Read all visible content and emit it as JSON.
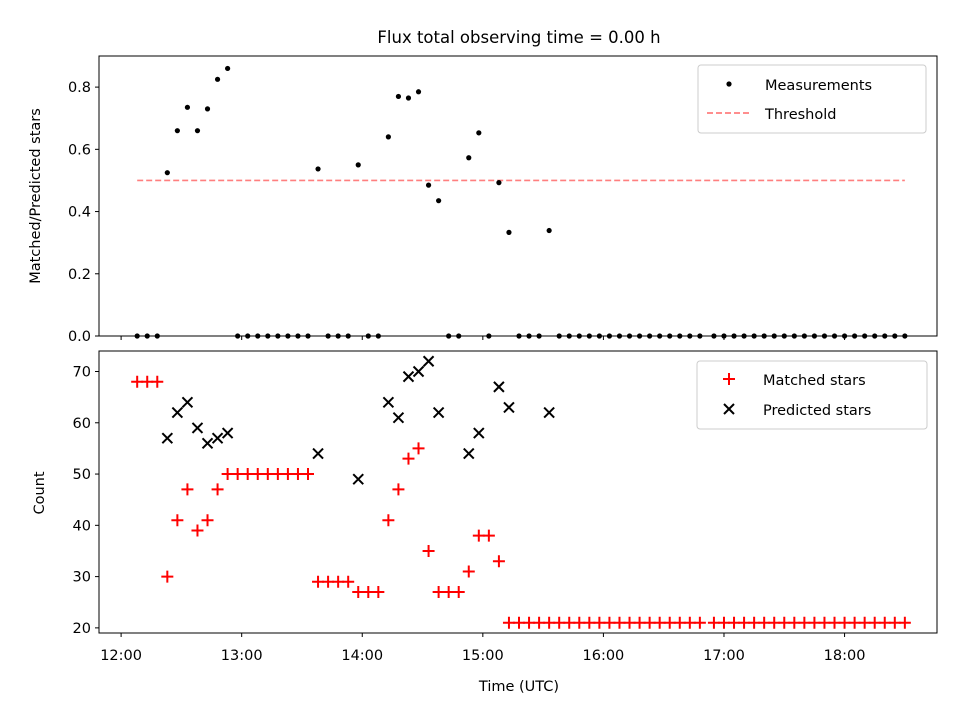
{
  "chart_data": [
    {
      "type": "scatter",
      "title": "Flux total observing time = 0.00 h",
      "ylabel": "Matched/Predicted stars",
      "xlabel": "",
      "ylim": [
        0,
        0.9
      ],
      "y_ticks": [
        "0.0",
        "0.2",
        "0.4",
        "0.6",
        "0.8"
      ],
      "legend_position": "top-right",
      "series": [
        {
          "name": "Measurements",
          "marker": "dot",
          "color": "#000000",
          "points": [
            [
              "12:08",
              0.0
            ],
            [
              "12:13",
              0.0
            ],
            [
              "12:18",
              0.0
            ],
            [
              "12:23",
              0.525
            ],
            [
              "12:28",
              0.66
            ],
            [
              "12:33",
              0.735
            ],
            [
              "12:38",
              0.66
            ],
            [
              "12:43",
              0.73
            ],
            [
              "12:48",
              0.825
            ],
            [
              "12:53",
              0.86
            ],
            [
              "12:58",
              0.0
            ],
            [
              "13:03",
              0.0
            ],
            [
              "13:08",
              0.0
            ],
            [
              "13:13",
              0.0
            ],
            [
              "13:18",
              0.0
            ],
            [
              "13:23",
              0.0
            ],
            [
              "13:28",
              0.0
            ],
            [
              "13:33",
              0.0
            ],
            [
              "13:38",
              0.537
            ],
            [
              "13:43",
              0.0
            ],
            [
              "13:48",
              0.0
            ],
            [
              "13:53",
              0.0
            ],
            [
              "13:58",
              0.55
            ],
            [
              "14:03",
              0.0
            ],
            [
              "14:08",
              0.0
            ],
            [
              "14:13",
              0.64
            ],
            [
              "14:18",
              0.77
            ],
            [
              "14:23",
              0.765
            ],
            [
              "14:28",
              0.785
            ],
            [
              "14:33",
              0.485
            ],
            [
              "14:38",
              0.435
            ],
            [
              "14:43",
              0.0
            ],
            [
              "14:48",
              0.0
            ],
            [
              "14:53",
              0.573
            ],
            [
              "14:58",
              0.653
            ],
            [
              "15:03",
              0.0
            ],
            [
              "15:08",
              0.493
            ],
            [
              "15:13",
              0.333
            ],
            [
              "15:18",
              0.0
            ],
            [
              "15:23",
              0.0
            ],
            [
              "15:28",
              0.0
            ],
            [
              "15:33",
              0.339
            ],
            [
              "15:38",
              0.0
            ],
            [
              "15:43",
              0.0
            ],
            [
              "15:48",
              0.0
            ],
            [
              "15:53",
              0.0
            ],
            [
              "15:58",
              0.0
            ],
            [
              "16:03",
              0.0
            ],
            [
              "16:08",
              0.0
            ],
            [
              "16:13",
              0.0
            ],
            [
              "16:18",
              0.0
            ],
            [
              "16:23",
              0.0
            ],
            [
              "16:28",
              0.0
            ],
            [
              "16:33",
              0.0
            ],
            [
              "16:38",
              0.0
            ],
            [
              "16:43",
              0.0
            ],
            [
              "16:48",
              0.0
            ],
            [
              "16:55",
              0.0
            ],
            [
              "17:00",
              0.0
            ],
            [
              "17:05",
              0.0
            ],
            [
              "17:10",
              0.0
            ],
            [
              "17:15",
              0.0
            ],
            [
              "17:20",
              0.0
            ],
            [
              "17:25",
              0.0
            ],
            [
              "17:30",
              0.0
            ],
            [
              "17:35",
              0.0
            ],
            [
              "17:40",
              0.0
            ],
            [
              "17:45",
              0.0
            ],
            [
              "17:50",
              0.0
            ],
            [
              "17:55",
              0.0
            ],
            [
              "18:00",
              0.0
            ],
            [
              "18:05",
              0.0
            ],
            [
              "18:10",
              0.0
            ],
            [
              "18:15",
              0.0
            ],
            [
              "18:20",
              0.0
            ],
            [
              "18:25",
              0.0
            ],
            [
              "18:30",
              0.0
            ]
          ]
        },
        {
          "name": "Threshold",
          "marker": "dashed-line",
          "color": "#ff7f7f",
          "points": [
            [
              "12:08",
              0.5
            ],
            [
              "18:30",
              0.5
            ]
          ]
        }
      ]
    },
    {
      "type": "scatter",
      "title": "",
      "xlabel": "Time (UTC)",
      "ylabel": "Count",
      "ylim": [
        19,
        74
      ],
      "y_ticks": [
        "20",
        "30",
        "40",
        "50",
        "60",
        "70"
      ],
      "x_ticks": [
        "12:00",
        "13:00",
        "14:00",
        "15:00",
        "16:00",
        "17:00",
        "18:00"
      ],
      "xlim": [
        "11:49",
        "18:46"
      ],
      "legend_position": "top-right",
      "series": [
        {
          "name": "Matched stars",
          "marker": "plus",
          "color": "#ff0000",
          "points": [
            [
              "12:08",
              68
            ],
            [
              "12:13",
              68
            ],
            [
              "12:18",
              68
            ],
            [
              "12:23",
              30
            ],
            [
              "12:28",
              41
            ],
            [
              "12:33",
              47
            ],
            [
              "12:38",
              39
            ],
            [
              "12:43",
              41
            ],
            [
              "12:48",
              47
            ],
            [
              "12:53",
              50
            ],
            [
              "12:58",
              50
            ],
            [
              "13:03",
              50
            ],
            [
              "13:08",
              50
            ],
            [
              "13:13",
              50
            ],
            [
              "13:18",
              50
            ],
            [
              "13:23",
              50
            ],
            [
              "13:28",
              50
            ],
            [
              "13:33",
              50
            ],
            [
              "13:38",
              29
            ],
            [
              "13:43",
              29
            ],
            [
              "13:48",
              29
            ],
            [
              "13:53",
              29
            ],
            [
              "13:58",
              27
            ],
            [
              "14:03",
              27
            ],
            [
              "14:08",
              27
            ],
            [
              "14:13",
              41
            ],
            [
              "14:18",
              47
            ],
            [
              "14:23",
              53
            ],
            [
              "14:28",
              55
            ],
            [
              "14:33",
              35
            ],
            [
              "14:38",
              27
            ],
            [
              "14:43",
              27
            ],
            [
              "14:48",
              27
            ],
            [
              "14:53",
              31
            ],
            [
              "14:58",
              38
            ],
            [
              "15:03",
              38
            ],
            [
              "15:08",
              33
            ],
            [
              "15:13",
              21
            ],
            [
              "15:18",
              21
            ],
            [
              "15:23",
              21
            ],
            [
              "15:28",
              21
            ],
            [
              "15:33",
              21
            ],
            [
              "15:38",
              21
            ],
            [
              "15:43",
              21
            ],
            [
              "15:48",
              21
            ],
            [
              "15:53",
              21
            ],
            [
              "15:58",
              21
            ],
            [
              "16:03",
              21
            ],
            [
              "16:08",
              21
            ],
            [
              "16:13",
              21
            ],
            [
              "16:18",
              21
            ],
            [
              "16:23",
              21
            ],
            [
              "16:28",
              21
            ],
            [
              "16:33",
              21
            ],
            [
              "16:38",
              21
            ],
            [
              "16:43",
              21
            ],
            [
              "16:48",
              21
            ],
            [
              "16:55",
              21
            ],
            [
              "17:00",
              21
            ],
            [
              "17:05",
              21
            ],
            [
              "17:10",
              21
            ],
            [
              "17:15",
              21
            ],
            [
              "17:20",
              21
            ],
            [
              "17:25",
              21
            ],
            [
              "17:30",
              21
            ],
            [
              "17:35",
              21
            ],
            [
              "17:40",
              21
            ],
            [
              "17:45",
              21
            ],
            [
              "17:50",
              21
            ],
            [
              "17:55",
              21
            ],
            [
              "18:00",
              21
            ],
            [
              "18:05",
              21
            ],
            [
              "18:10",
              21
            ],
            [
              "18:15",
              21
            ],
            [
              "18:20",
              21
            ],
            [
              "18:25",
              21
            ],
            [
              "18:30",
              21
            ]
          ]
        },
        {
          "name": "Predicted stars",
          "marker": "x",
          "color": "#000000",
          "points": [
            [
              "12:23",
              57
            ],
            [
              "12:28",
              62
            ],
            [
              "12:33",
              64
            ],
            [
              "12:38",
              59
            ],
            [
              "12:43",
              56
            ],
            [
              "12:48",
              57
            ],
            [
              "12:53",
              58
            ],
            [
              "13:38",
              54
            ],
            [
              "13:58",
              49
            ],
            [
              "14:13",
              64
            ],
            [
              "14:18",
              61
            ],
            [
              "14:23",
              69
            ],
            [
              "14:28",
              70
            ],
            [
              "14:33",
              72
            ],
            [
              "14:38",
              62
            ],
            [
              "14:53",
              54
            ],
            [
              "14:58",
              58
            ],
            [
              "15:08",
              67
            ],
            [
              "15:13",
              63
            ],
            [
              "15:33",
              62
            ]
          ]
        }
      ]
    }
  ]
}
